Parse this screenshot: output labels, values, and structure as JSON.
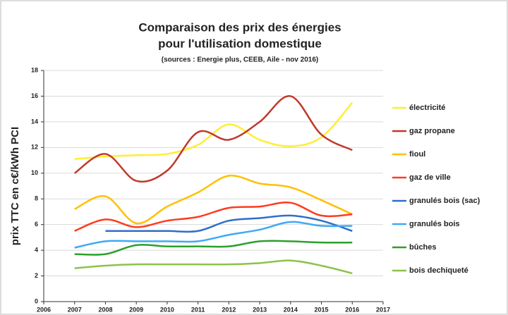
{
  "chart_data": {
    "type": "line",
    "title": [
      "Comparaison des prix des énergies",
      "pour l'utilisation domestique"
    ],
    "subtitle": "(sources : Energie plus, CEEB, Aile - nov 2016)",
    "y_label": "prix TTC en c€/kWh PCI",
    "x": [
      2007,
      2008,
      2009,
      2010,
      2011,
      2012,
      2013,
      2014,
      2015,
      2016
    ],
    "xlim": [
      2006,
      2017
    ],
    "xticks": [
      2006,
      2007,
      2008,
      2009,
      2010,
      2011,
      2012,
      2013,
      2014,
      2015,
      2016,
      2017
    ],
    "ylim": [
      0,
      18
    ],
    "yticks": [
      0,
      2,
      4,
      6,
      8,
      10,
      12,
      14,
      16,
      18
    ],
    "grid": true,
    "smooth": true,
    "legend": "right",
    "series": [
      {
        "name": "électricité",
        "color": "#ffee33",
        "values": [
          11.1,
          11.3,
          11.4,
          11.5,
          12.2,
          13.8,
          12.6,
          12.1,
          12.8,
          15.5
        ]
      },
      {
        "name": "gaz propane",
        "color": "#c0392b",
        "values": [
          10.0,
          11.5,
          9.4,
          10.2,
          13.2,
          12.6,
          14.0,
          16.0,
          13.0,
          11.8
        ]
      },
      {
        "name": "fioul",
        "color": "#ffc000",
        "values": [
          7.2,
          8.2,
          6.1,
          7.4,
          8.5,
          9.8,
          9.2,
          8.9,
          7.9,
          6.8
        ]
      },
      {
        "name": "gaz de ville",
        "color": "#ff3b1f",
        "values": [
          5.5,
          6.4,
          5.8,
          6.3,
          6.6,
          7.3,
          7.4,
          7.7,
          6.7,
          6.8
        ]
      },
      {
        "name": "granulés bois (sac)",
        "color": "#2e6fc7",
        "values": [
          null,
          5.5,
          5.5,
          5.5,
          5.5,
          6.3,
          6.5,
          6.7,
          6.3,
          5.5
        ]
      },
      {
        "name": "granulés bois",
        "color": "#3fa9f5",
        "values": [
          4.2,
          4.7,
          4.7,
          4.7,
          4.7,
          5.2,
          5.6,
          6.2,
          5.9,
          5.9
        ]
      },
      {
        "name": "bûches",
        "color": "#2ca02c",
        "values": [
          3.7,
          3.7,
          4.4,
          4.3,
          4.3,
          4.3,
          4.7,
          4.7,
          4.6,
          4.6
        ]
      },
      {
        "name": "bois dechiqueté",
        "color": "#8bc34a",
        "values": [
          2.6,
          2.8,
          2.9,
          2.9,
          2.9,
          2.9,
          3.0,
          3.2,
          2.8,
          2.2
        ]
      }
    ]
  }
}
